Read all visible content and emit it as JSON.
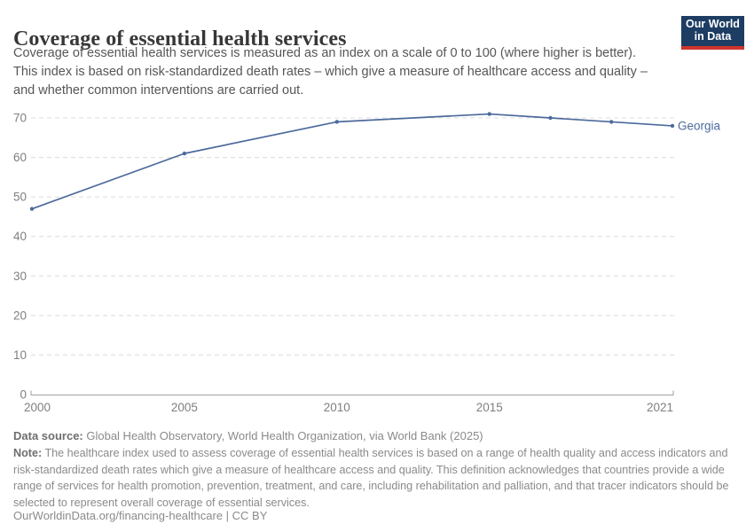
{
  "header": {
    "title": "Coverage of essential health services",
    "subtitle_lines": [
      "Coverage of essential health services is measured as an index on a scale of 0 to 100 (where higher is better).",
      "This index is based on risk-standardized death rates – which give a measure of healthcare access and quality –",
      "and whether common interventions are carried out."
    ],
    "logo": {
      "line1": "Our World",
      "line2": "in Data"
    }
  },
  "chart_data": {
    "type": "line",
    "title": "Coverage of essential health services",
    "xlabel": "",
    "ylabel": "",
    "xlim": [
      2000,
      2021
    ],
    "ylim": [
      0,
      70
    ],
    "x_ticks": [
      2000,
      2005,
      2010,
      2015,
      2021
    ],
    "y_ticks": [
      0,
      10,
      20,
      30,
      40,
      50,
      60,
      70
    ],
    "grid": "horizontal-dashed",
    "legend_position": "end-of-line-label",
    "series": [
      {
        "name": "Georgia",
        "color": "#4c6a9c",
        "x": [
          2000,
          2005,
          2010,
          2015,
          2017,
          2019,
          2021
        ],
        "values": [
          47,
          61,
          69,
          71,
          70,
          69,
          68
        ]
      }
    ]
  },
  "footer": {
    "data_source_label": "Data source:",
    "data_source": " Global Health Observatory, World Health Organization, via World Bank (2025)",
    "note_label": "Note:",
    "note": " The healthcare index used to assess coverage of essential health services is based on a range of health quality and access indicators and risk-standardized death rates which give a measure of healthcare access and quality. This definition acknowledges that countries provide a wide range of services for health promotion, prevention, treatment, and care, including rehabilitation and palliation, and that tracer indicators should be selected to represent overall coverage of essential services.",
    "url_line": "OurWorldinData.org/financing-healthcare | CC BY"
  },
  "colors": {
    "line": "#4c6a9c",
    "grid": "#dcdcdc",
    "tick_text": "#7f7f7f",
    "axis": "#a0a0a0",
    "logo_navy": "#1d3d63",
    "logo_red": "#cf342c"
  }
}
